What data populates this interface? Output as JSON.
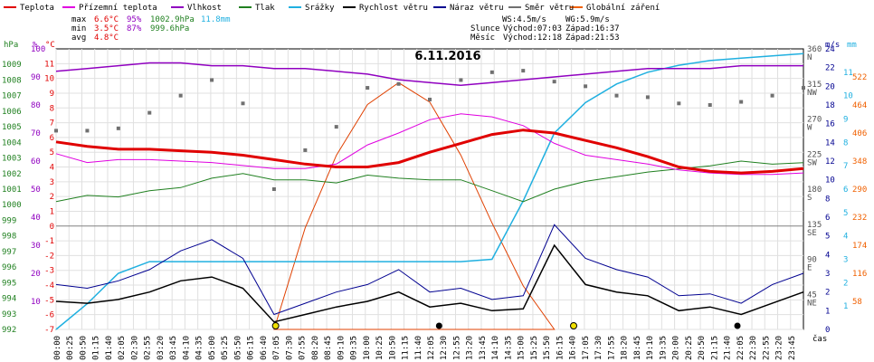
{
  "legend": [
    {
      "label": "Teplota",
      "color": "#e00000"
    },
    {
      "label": "Přízemní teplota",
      "color": "#e000e0"
    },
    {
      "label": "Vlhkost",
      "color": "#9000c0"
    },
    {
      "label": "Tlak",
      "color": "#208020"
    },
    {
      "label": "Srážky",
      "color": "#20b0e0"
    },
    {
      "label": "Rychlost větru",
      "color": "#000000"
    },
    {
      "label": "Náraz větru",
      "color": "#000090"
    },
    {
      "label": "Směr větru",
      "color": "#707070"
    },
    {
      "label": "Globální záření",
      "color": "#f06000"
    }
  ],
  "stats": {
    "max_label": "max",
    "max_temp": "6.6°C",
    "max_hum": "95%",
    "max_press": "1002.9hPa",
    "max_rain": "11.8mm",
    "min_label": "min",
    "min_temp": "3.5°C",
    "min_hum": "87%",
    "min_press": "999.6hPa",
    "avg_label": "avg",
    "avg_temp": "4.8°C"
  },
  "info": {
    "ws": "WS:4.5m/s",
    "wg": "WG:5.9m/s",
    "sun_label": "Slunce",
    "sun_rise": "Východ:07:03",
    "sun_set": "Západ:16:37",
    "moon_label": "Měsíc",
    "moon_rise": "Východ:12:18",
    "moon_set": "Západ:21:53"
  },
  "chart_data": {
    "type": "line",
    "title": "6.11.2016",
    "xlabel": "čas",
    "axes": {
      "pressure": {
        "unit": "hPa",
        "range": [
          992,
          1010
        ],
        "ticks": [
          992,
          993,
          994,
          995,
          996,
          997,
          998,
          999,
          1000,
          1001,
          1002,
          1003,
          1004,
          1005,
          1006,
          1007,
          1008,
          1009
        ]
      },
      "humidity": {
        "unit": "%",
        "range": [
          0,
          100
        ],
        "ticks": [
          10,
          20,
          30,
          40,
          50,
          60,
          70,
          80,
          90,
          100
        ]
      },
      "temperature": {
        "unit": "°C",
        "range": [
          -7,
          12
        ],
        "ticks": [
          -7,
          -6,
          -5,
          -4,
          -3,
          -2,
          -1,
          0,
          1,
          2,
          3,
          4,
          5,
          6,
          7,
          8,
          9,
          10,
          11
        ]
      },
      "direction": {
        "unit": "°",
        "range": [
          0,
          360
        ],
        "ticks": [
          45,
          90,
          135,
          180,
          225,
          270,
          315,
          360
        ],
        "labels": [
          "NE",
          "E",
          "SE",
          "S",
          "SW",
          "W",
          "NW",
          "N"
        ]
      },
      "wind": {
        "unit": "m/s",
        "range": [
          0,
          24
        ],
        "ticks": [
          0,
          1,
          2,
          3,
          4,
          5,
          6,
          8,
          10,
          12,
          14,
          16,
          18,
          20,
          22,
          24
        ]
      },
      "rain": {
        "unit": "mm",
        "range": [
          0,
          12
        ],
        "ticks": [
          1,
          2,
          3,
          4,
          5,
          6,
          7,
          8,
          9,
          10,
          11
        ]
      },
      "radiation": {
        "unit": "W/m²",
        "range": [
          0,
          580
        ],
        "ticks": [
          58,
          116,
          174,
          232,
          290,
          348,
          406,
          464,
          522
        ]
      }
    },
    "x_ticks": [
      "00:00",
      "00:25",
      "00:50",
      "01:15",
      "01:40",
      "02:05",
      "02:30",
      "02:55",
      "03:20",
      "03:45",
      "04:10",
      "04:35",
      "05:00",
      "05:25",
      "05:50",
      "06:15",
      "06:40",
      "07:05",
      "07:30",
      "07:55",
      "08:20",
      "08:45",
      "09:10",
      "09:35",
      "10:00",
      "10:25",
      "10:50",
      "11:15",
      "11:40",
      "12:05",
      "12:30",
      "12:55",
      "13:20",
      "13:45",
      "14:10",
      "14:35",
      "15:00",
      "15:25",
      "15:50",
      "16:15",
      "16:40",
      "17:05",
      "17:30",
      "17:55",
      "18:20",
      "18:45",
      "19:10",
      "19:35",
      "20:00",
      "20:25",
      "20:50",
      "21:15",
      "21:40",
      "22:05",
      "22:30",
      "22:55",
      "23:20",
      "23:45"
    ],
    "series": [
      {
        "name": "Teplota",
        "unit": "°C",
        "x": [
          0,
          1,
          2,
          3,
          4,
          5,
          6,
          7,
          8,
          9,
          10,
          11,
          12,
          13,
          14,
          15,
          16,
          17,
          18,
          19,
          20,
          21,
          22,
          23,
          24
        ],
        "values": [
          5.7,
          5.4,
          5.2,
          5.2,
          5.1,
          5.0,
          4.8,
          4.5,
          4.2,
          4.0,
          4.0,
          4.3,
          5.0,
          5.6,
          6.2,
          6.5,
          6.3,
          5.8,
          5.3,
          4.7,
          4.0,
          3.7,
          3.6,
          3.7,
          3.9
        ]
      },
      {
        "name": "Přízemní teplota",
        "unit": "°C",
        "x": [
          0,
          1,
          2,
          3,
          4,
          5,
          6,
          7,
          8,
          9,
          10,
          11,
          12,
          13,
          14,
          15,
          16,
          17,
          18,
          19,
          20,
          21,
          22,
          23,
          24
        ],
        "values": [
          4.9,
          4.3,
          4.5,
          4.5,
          4.4,
          4.3,
          4.1,
          3.9,
          3.9,
          4.2,
          5.5,
          6.3,
          7.2,
          7.6,
          7.4,
          6.8,
          5.6,
          4.8,
          4.5,
          4.2,
          3.8,
          3.6,
          3.5,
          3.5,
          3.6
        ]
      },
      {
        "name": "Vlhkost",
        "unit": "%",
        "x": [
          0,
          1,
          2,
          3,
          4,
          5,
          6,
          7,
          8,
          9,
          10,
          11,
          12,
          13,
          14,
          15,
          16,
          17,
          18,
          19,
          20,
          21,
          22,
          23,
          24
        ],
        "values": [
          92,
          93,
          94,
          95,
          95,
          94,
          94,
          93,
          93,
          92,
          91,
          89,
          88,
          87,
          88,
          89,
          90,
          91,
          92,
          93,
          93,
          93,
          94,
          94,
          94
        ]
      },
      {
        "name": "Tlak",
        "unit": "hPa",
        "x": [
          0,
          1,
          2,
          3,
          4,
          5,
          6,
          7,
          8,
          9,
          10,
          11,
          12,
          13,
          14,
          15,
          16,
          17,
          18,
          19,
          20,
          21,
          22,
          23,
          24
        ],
        "values": [
          1000.2,
          1000.6,
          1000.5,
          1000.9,
          1001.1,
          1001.7,
          1002.0,
          1001.6,
          1001.6,
          1001.4,
          1001.9,
          1001.7,
          1001.6,
          1001.6,
          1000.9,
          1000.2,
          1001.0,
          1001.5,
          1001.8,
          1002.1,
          1002.3,
          1002.5,
          1002.8,
          1002.6,
          1002.7
        ]
      },
      {
        "name": "Srážky",
        "unit": "mm",
        "x": [
          0,
          1,
          2,
          3,
          4,
          5,
          6,
          7,
          8,
          9,
          10,
          11,
          12,
          13,
          14,
          15,
          16,
          17,
          18,
          19,
          20,
          21,
          22,
          23,
          24
        ],
        "values": [
          0,
          1.1,
          2.4,
          2.9,
          2.9,
          2.9,
          2.9,
          2.9,
          2.9,
          2.9,
          2.9,
          2.9,
          2.9,
          2.9,
          3.0,
          5.5,
          8.4,
          9.7,
          10.5,
          11.0,
          11.3,
          11.5,
          11.6,
          11.7,
          11.8
        ]
      },
      {
        "name": "Rychlost větru",
        "unit": "m/s",
        "x": [
          0,
          1,
          2,
          3,
          4,
          5,
          6,
          7,
          8,
          9,
          10,
          11,
          12,
          13,
          14,
          15,
          16,
          17,
          18,
          19,
          20,
          21,
          22,
          23,
          24
        ],
        "values": [
          1.5,
          1.4,
          1.6,
          2.0,
          2.6,
          2.8,
          2.2,
          0.4,
          0.8,
          1.2,
          1.5,
          2.0,
          1.2,
          1.4,
          1.0,
          1.1,
          4.5,
          2.4,
          2.0,
          1.8,
          1.0,
          1.2,
          0.8,
          1.4,
          2.0
        ]
      },
      {
        "name": "Náraz větru",
        "unit": "m/s",
        "x": [
          0,
          1,
          2,
          3,
          4,
          5,
          6,
          7,
          8,
          9,
          10,
          11,
          12,
          13,
          14,
          15,
          16,
          17,
          18,
          19,
          20,
          21,
          22,
          23,
          24
        ],
        "values": [
          2.4,
          2.2,
          2.6,
          3.2,
          4.2,
          4.8,
          3.8,
          0.8,
          1.4,
          2.0,
          2.4,
          3.2,
          2.0,
          2.2,
          1.6,
          1.8,
          5.6,
          3.8,
          3.2,
          2.8,
          1.8,
          1.9,
          1.4,
          2.4,
          3.0
        ]
      },
      {
        "name": "Směr větru",
        "unit": "°",
        "x": [
          0,
          1,
          2,
          3,
          4,
          5,
          6,
          7,
          8,
          9,
          10,
          11,
          12,
          13,
          14,
          15,
          16,
          17,
          18,
          19,
          20,
          21,
          22,
          23,
          24
        ],
        "values": [
          255,
          255,
          258,
          278,
          300,
          320,
          290,
          180,
          230,
          260,
          310,
          315,
          295,
          320,
          330,
          332,
          318,
          312,
          300,
          298,
          290,
          288,
          292,
          300,
          310
        ]
      },
      {
        "name": "Globální záření",
        "unit": "W/m²",
        "x": [
          7,
          8,
          9,
          10,
          11,
          12,
          13,
          14,
          15,
          16
        ],
        "values": [
          0,
          210,
          360,
          465,
          510,
          470,
          360,
          220,
          90,
          0
        ]
      }
    ],
    "precip_intensity_curve": "orange"
  }
}
